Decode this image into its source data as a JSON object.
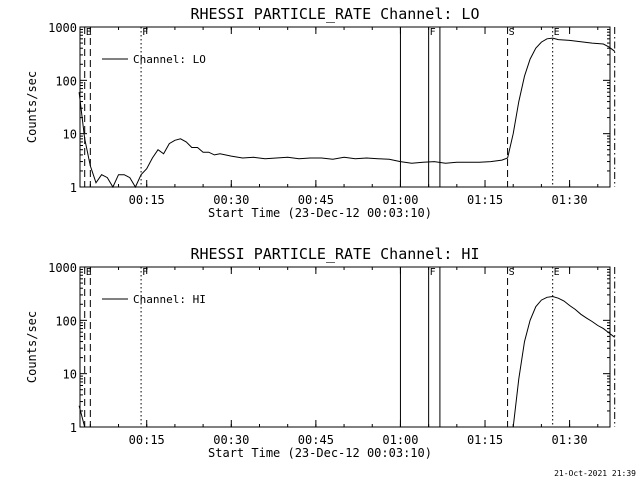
{
  "timestamp": "21-Oct-2021 21:39",
  "chart_data": [
    {
      "type": "line",
      "title": "RHESSI PARTICLE_RATE Channel: LO",
      "xlabel": "Start Time (23-Dec-12 00:03:10)",
      "ylabel": "Counts/sec",
      "yscale": "log",
      "ylim": [
        1,
        1000
      ],
      "xlim_minutes_after_start": [
        0,
        94
      ],
      "x_ticks": [
        "00:15",
        "00:30",
        "00:45",
        "01:00",
        "01:15",
        "01:30"
      ],
      "y_ticks": [
        "1",
        "10",
        "100",
        "1000"
      ],
      "legend": "Channel: LO",
      "legend_position": "top-left",
      "markers": [
        {
          "label": "E",
          "t": "00:04",
          "style": "dashed"
        },
        {
          "label": "",
          "t": "00:05",
          "style": "dashed"
        },
        {
          "label": "F",
          "t": "00:14",
          "style": "dotted"
        },
        {
          "label": "",
          "t": "01:00",
          "style": "solid"
        },
        {
          "label": "F",
          "t": "01:05",
          "style": "solid"
        },
        {
          "label": "",
          "t": "01:07",
          "style": "solid"
        },
        {
          "label": "S",
          "t": "01:19",
          "style": "dashed"
        },
        {
          "label": "E",
          "t": "01:27",
          "style": "dotted"
        },
        {
          "label": "",
          "t": "01:38",
          "style": "dashdot"
        }
      ],
      "series": [
        {
          "name": "Channel: LO",
          "points": [
            [
              "00:03",
              60
            ],
            [
              "00:04",
              8
            ],
            [
              "00:05",
              2.5
            ],
            [
              "00:06",
              1.2
            ],
            [
              "00:07",
              1.7
            ],
            [
              "00:08",
              1.5
            ],
            [
              "00:09",
              1.0
            ],
            [
              "00:10",
              1.7
            ],
            [
              "00:11",
              1.7
            ],
            [
              "00:12",
              1.5
            ],
            [
              "00:13",
              1.0
            ],
            [
              "00:14",
              1.7
            ],
            [
              "00:15",
              2.2
            ],
            [
              "00:16",
              3.5
            ],
            [
              "00:17",
              5
            ],
            [
              "00:18",
              4.2
            ],
            [
              "00:19",
              6.5
            ],
            [
              "00:20",
              7.5
            ],
            [
              "00:21",
              8
            ],
            [
              "00:22",
              7
            ],
            [
              "00:23",
              5.5
            ],
            [
              "00:24",
              5.5
            ],
            [
              "00:25",
              4.5
            ],
            [
              "00:26",
              4.5
            ],
            [
              "00:27",
              4
            ],
            [
              "00:28",
              4.2
            ],
            [
              "00:30",
              3.8
            ],
            [
              "00:32",
              3.5
            ],
            [
              "00:34",
              3.6
            ],
            [
              "00:36",
              3.4
            ],
            [
              "00:38",
              3.5
            ],
            [
              "00:40",
              3.6
            ],
            [
              "00:42",
              3.4
            ],
            [
              "00:44",
              3.5
            ],
            [
              "00:46",
              3.5
            ],
            [
              "00:48",
              3.3
            ],
            [
              "00:50",
              3.6
            ],
            [
              "00:52",
              3.4
            ],
            [
              "00:54",
              3.5
            ],
            [
              "00:56",
              3.4
            ],
            [
              "00:58",
              3.3
            ],
            [
              "01:00",
              3.0
            ],
            [
              "01:02",
              2.8
            ],
            [
              "01:04",
              2.9
            ],
            [
              "01:06",
              3.0
            ],
            [
              "01:08",
              2.8
            ],
            [
              "01:10",
              2.9
            ],
            [
              "01:12",
              2.9
            ],
            [
              "01:14",
              2.9
            ],
            [
              "01:16",
              3.0
            ],
            [
              "01:18",
              3.2
            ],
            [
              "01:19",
              3.5
            ],
            [
              "01:20",
              10
            ],
            [
              "01:21",
              40
            ],
            [
              "01:22",
              120
            ],
            [
              "01:23",
              250
            ],
            [
              "01:24",
              400
            ],
            [
              "01:25",
              520
            ],
            [
              "01:26",
              600
            ],
            [
              "01:27",
              620
            ],
            [
              "01:28",
              580
            ],
            [
              "01:30",
              560
            ],
            [
              "01:32",
              530
            ],
            [
              "01:34",
              500
            ],
            [
              "01:36",
              480
            ],
            [
              "01:37",
              420
            ],
            [
              "01:38",
              350
            ]
          ]
        }
      ]
    },
    {
      "type": "line",
      "title": "RHESSI PARTICLE_RATE Channel: HI",
      "xlabel": "Start Time (23-Dec-12 00:03:10)",
      "ylabel": "Counts/sec",
      "yscale": "log",
      "ylim": [
        1,
        1000
      ],
      "xlim_minutes_after_start": [
        0,
        94
      ],
      "x_ticks": [
        "00:15",
        "00:30",
        "00:45",
        "01:00",
        "01:15",
        "01:30"
      ],
      "y_ticks": [
        "1",
        "10",
        "100",
        "1000"
      ],
      "legend": "Channel: HI",
      "legend_position": "top-left",
      "markers": [
        {
          "label": "E",
          "t": "00:04",
          "style": "dashed"
        },
        {
          "label": "",
          "t": "00:05",
          "style": "dashed"
        },
        {
          "label": "F",
          "t": "00:14",
          "style": "dotted"
        },
        {
          "label": "",
          "t": "01:00",
          "style": "solid"
        },
        {
          "label": "F",
          "t": "01:05",
          "style": "solid"
        },
        {
          "label": "",
          "t": "01:07",
          "style": "solid"
        },
        {
          "label": "S",
          "t": "01:19",
          "style": "dashed"
        },
        {
          "label": "E",
          "t": "01:27",
          "style": "dotted"
        },
        {
          "label": "",
          "t": "01:38",
          "style": "dashdot"
        }
      ],
      "series": [
        {
          "name": "Channel: HI",
          "points": [
            [
              "00:03",
              2.5
            ],
            [
              "00:04",
              1.0
            ],
            [
              "01:20",
              1.0
            ],
            [
              "01:21",
              8
            ],
            [
              "01:22",
              40
            ],
            [
              "01:23",
              100
            ],
            [
              "01:24",
              180
            ],
            [
              "01:25",
              240
            ],
            [
              "01:26",
              270
            ],
            [
              "01:27",
              280
            ],
            [
              "01:28",
              260
            ],
            [
              "01:29",
              230
            ],
            [
              "01:30",
              190
            ],
            [
              "01:31",
              160
            ],
            [
              "01:32",
              130
            ],
            [
              "01:33",
              110
            ],
            [
              "01:34",
              95
            ],
            [
              "01:35",
              80
            ],
            [
              "01:36",
              70
            ],
            [
              "01:37",
              58
            ],
            [
              "01:38",
              48
            ]
          ]
        }
      ]
    }
  ]
}
